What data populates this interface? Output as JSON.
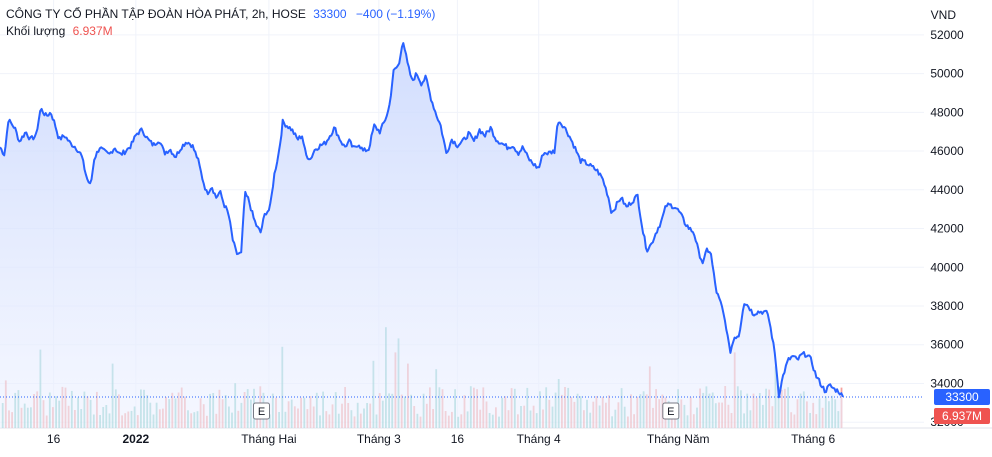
{
  "legend": {
    "symbol": "CÔNG TY CỔ PHẦN TẬP ĐOÀN HÒA PHÁT, 2h, HOSE",
    "last": "33300",
    "change": "−400 (−1.19%)",
    "volume_label": "Khối lượng",
    "volume_value": "6.937M"
  },
  "currency": "VND",
  "badges": {
    "price": "33300",
    "volume": "6.937M"
  },
  "colors": {
    "line": "#2962ff",
    "area": "#dfe7ff",
    "vol_up": "#26a69a",
    "vol_down": "#ef5350",
    "price_badge": "#2962ff",
    "volume_badge": "#ef5350"
  },
  "chart_data": {
    "type": "area",
    "ylim": [
      31700,
      53800
    ],
    "yticks": [
      "52000",
      "50000",
      "48000",
      "46000",
      "44000",
      "42000",
      "40000",
      "38000",
      "36000",
      "34000",
      "32000"
    ],
    "xticks": [
      {
        "label": "16",
        "pos": 0.058,
        "bold": false
      },
      {
        "label": "2022",
        "pos": 0.147,
        "bold": true
      },
      {
        "label": "Tháng Hai",
        "pos": 0.291,
        "bold": false
      },
      {
        "label": "Tháng 3",
        "pos": 0.41,
        "bold": false
      },
      {
        "label": "16",
        "pos": 0.495,
        "bold": false
      },
      {
        "label": "Tháng 4",
        "pos": 0.583,
        "bold": false
      },
      {
        "label": "Tháng Năm",
        "pos": 0.734,
        "bold": false
      },
      {
        "label": "Tháng 6",
        "pos": 0.88,
        "bold": false
      }
    ],
    "events": [
      {
        "label": "E",
        "pos": 0.283
      },
      {
        "label": "E",
        "pos": 0.726
      }
    ],
    "price_keypoints": [
      [
        0,
        46200
      ],
      [
        0.005,
        45800
      ],
      [
        0.009,
        47600
      ],
      [
        0.016,
        47200
      ],
      [
        0.021,
        46500
      ],
      [
        0.028,
        47000
      ],
      [
        0.033,
        46600
      ],
      [
        0.039,
        46800
      ],
      [
        0.044,
        48200
      ],
      [
        0.05,
        47800
      ],
      [
        0.055,
        48000
      ],
      [
        0.06,
        47300
      ],
      [
        0.064,
        46600
      ],
      [
        0.07,
        46800
      ],
      [
        0.076,
        46400
      ],
      [
        0.082,
        46200
      ],
      [
        0.088,
        45800
      ],
      [
        0.094,
        44600
      ],
      [
        0.098,
        44200
      ],
      [
        0.102,
        45600
      ],
      [
        0.108,
        46200
      ],
      [
        0.112,
        46000
      ],
      [
        0.118,
        45800
      ],
      [
        0.124,
        46200
      ],
      [
        0.13,
        45800
      ],
      [
        0.136,
        46000
      ],
      [
        0.142,
        46300
      ],
      [
        0.148,
        46900
      ],
      [
        0.154,
        47100
      ],
      [
        0.16,
        46600
      ],
      [
        0.166,
        46300
      ],
      [
        0.172,
        46600
      ],
      [
        0.178,
        45900
      ],
      [
        0.184,
        46100
      ],
      [
        0.19,
        45700
      ],
      [
        0.196,
        46200
      ],
      [
        0.202,
        46500
      ],
      [
        0.208,
        46300
      ],
      [
        0.214,
        45600
      ],
      [
        0.219,
        44600
      ],
      [
        0.224,
        43800
      ],
      [
        0.229,
        44200
      ],
      [
        0.234,
        43600
      ],
      [
        0.238,
        43900
      ],
      [
        0.243,
        43200
      ],
      [
        0.247,
        42800
      ],
      [
        0.252,
        41400
      ],
      [
        0.256,
        40700
      ],
      [
        0.261,
        40700
      ],
      [
        0.265,
        43800
      ],
      [
        0.269,
        43500
      ],
      [
        0.274,
        42600
      ],
      [
        0.278,
        42100
      ],
      [
        0.282,
        41800
      ],
      [
        0.287,
        42800
      ],
      [
        0.292,
        43000
      ],
      [
        0.297,
        44800
      ],
      [
        0.302,
        46000
      ],
      [
        0.306,
        47500
      ],
      [
        0.311,
        47300
      ],
      [
        0.316,
        47100
      ],
      [
        0.322,
        46600
      ],
      [
        0.327,
        46800
      ],
      [
        0.331,
        45800
      ],
      [
        0.336,
        45600
      ],
      [
        0.341,
        46100
      ],
      [
        0.347,
        46300
      ],
      [
        0.352,
        46400
      ],
      [
        0.357,
        46800
      ],
      [
        0.362,
        47200
      ],
      [
        0.368,
        46600
      ],
      [
        0.373,
        46200
      ],
      [
        0.378,
        46500
      ],
      [
        0.383,
        46100
      ],
      [
        0.388,
        46400
      ],
      [
        0.393,
        46000
      ],
      [
        0.399,
        46100
      ],
      [
        0.405,
        47300
      ],
      [
        0.411,
        47000
      ],
      [
        0.416,
        47500
      ],
      [
        0.421,
        48200
      ],
      [
        0.426,
        50100
      ],
      [
        0.432,
        50500
      ],
      [
        0.436,
        51800
      ],
      [
        0.441,
        50500
      ],
      [
        0.446,
        49600
      ],
      [
        0.451,
        50000
      ],
      [
        0.456,
        49500
      ],
      [
        0.461,
        49800
      ],
      [
        0.466,
        48800
      ],
      [
        0.472,
        47900
      ],
      [
        0.477,
        47300
      ],
      [
        0.483,
        45900
      ],
      [
        0.489,
        46600
      ],
      [
        0.495,
        46300
      ],
      [
        0.501,
        46500
      ],
      [
        0.507,
        46900
      ],
      [
        0.513,
        46500
      ],
      [
        0.519,
        47100
      ],
      [
        0.525,
        46800
      ],
      [
        0.531,
        47200
      ],
      [
        0.537,
        46600
      ],
      [
        0.543,
        46400
      ],
      [
        0.549,
        46200
      ],
      [
        0.555,
        46300
      ],
      [
        0.561,
        45900
      ],
      [
        0.566,
        46200
      ],
      [
        0.572,
        45600
      ],
      [
        0.578,
        45300
      ],
      [
        0.583,
        45100
      ],
      [
        0.588,
        45900
      ],
      [
        0.594,
        45900
      ],
      [
        0.6,
        46000
      ],
      [
        0.604,
        47600
      ],
      [
        0.61,
        47300
      ],
      [
        0.616,
        46800
      ],
      [
        0.622,
        46200
      ],
      [
        0.628,
        45500
      ],
      [
        0.634,
        45400
      ],
      [
        0.64,
        45200
      ],
      [
        0.646,
        45000
      ],
      [
        0.652,
        44600
      ],
      [
        0.658,
        43700
      ],
      [
        0.662,
        42800
      ],
      [
        0.667,
        43200
      ],
      [
        0.672,
        43600
      ],
      [
        0.678,
        43100
      ],
      [
        0.684,
        43400
      ],
      [
        0.69,
        43700
      ],
      [
        0.696,
        41800
      ],
      [
        0.7,
        40900
      ],
      [
        0.705,
        41200
      ],
      [
        0.71,
        41800
      ],
      [
        0.716,
        42400
      ],
      [
        0.721,
        43200
      ],
      [
        0.726,
        43200
      ],
      [
        0.731,
        43100
      ],
      [
        0.736,
        42800
      ],
      [
        0.741,
        42300
      ],
      [
        0.746,
        42000
      ],
      [
        0.751,
        41800
      ],
      [
        0.756,
        40800
      ],
      [
        0.761,
        40200
      ],
      [
        0.765,
        40900
      ],
      [
        0.769,
        40800
      ],
      [
        0.775,
        38800
      ],
      [
        0.781,
        38000
      ],
      [
        0.786,
        36900
      ],
      [
        0.79,
        35600
      ],
      [
        0.795,
        36400
      ],
      [
        0.8,
        36500
      ],
      [
        0.805,
        38200
      ],
      [
        0.81,
        38000
      ],
      [
        0.815,
        37600
      ],
      [
        0.82,
        37700
      ],
      [
        0.826,
        37700
      ],
      [
        0.831,
        37600
      ],
      [
        0.835,
        36600
      ],
      [
        0.839,
        35400
      ],
      [
        0.843,
        33400
      ],
      [
        0.848,
        34500
      ],
      [
        0.853,
        35200
      ],
      [
        0.858,
        35400
      ],
      [
        0.863,
        35200
      ],
      [
        0.868,
        35500
      ],
      [
        0.873,
        35500
      ],
      [
        0.878,
        35200
      ],
      [
        0.883,
        34400
      ],
      [
        0.888,
        34000
      ],
      [
        0.893,
        33600
      ],
      [
        0.898,
        33900
      ],
      [
        0.903,
        33700
      ],
      [
        0.908,
        33600
      ],
      [
        0.912,
        33300
      ]
    ],
    "volume_spikes": [
      [
        0.043,
        5.6,
        "up"
      ],
      [
        0.123,
        4.6,
        "up"
      ],
      [
        0.305,
        5.8,
        "up"
      ],
      [
        0.419,
        7.2,
        "up"
      ],
      [
        0.433,
        6.4,
        "up"
      ],
      [
        0.406,
        4.8,
        "up"
      ],
      [
        0.427,
        5.4,
        "down"
      ],
      [
        0.443,
        4.6,
        "down"
      ],
      [
        0.473,
        4.2,
        "up"
      ],
      [
        0.606,
        3.5,
        "up"
      ],
      [
        0.703,
        4.4,
        "down"
      ],
      [
        0.796,
        5.4,
        "down"
      ],
      [
        0.839,
        4.4,
        "up"
      ],
      [
        0.851,
        2.8,
        "down"
      ],
      [
        0.007,
        3.4,
        "down"
      ],
      [
        0.254,
        3.2,
        "up"
      ]
    ]
  }
}
